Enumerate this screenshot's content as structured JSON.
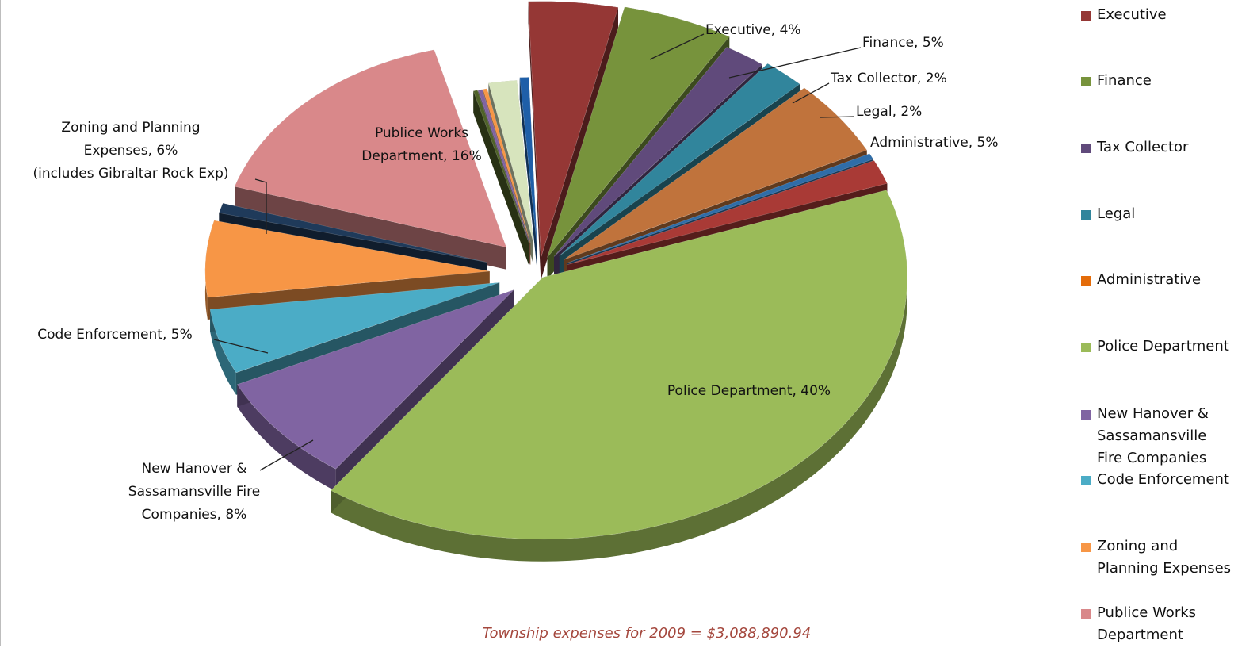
{
  "chart_data": {
    "type": "pie",
    "note": "Township expenses for 2009 = $3,088,890.94",
    "slices": [
      {
        "name": "Executive",
        "value": 4,
        "label": "Executive, 4%",
        "color": "#953735"
      },
      {
        "name": "Finance",
        "value": 5,
        "label": "Finance, 5%",
        "color": "#77933c"
      },
      {
        "name": "Tax Collector",
        "value": 2,
        "label": "Tax Collector, 2%",
        "color": "#604a7b"
      },
      {
        "name": "Legal",
        "value": 2,
        "label": "Legal, 2%",
        "color": "#31859c"
      },
      {
        "name": "Administrative",
        "value": 5,
        "label": "Administrative, 5%",
        "color": "#c0733c"
      },
      {
        "name": "",
        "value": 0.4,
        "label": "",
        "color": "#2f6da8"
      },
      {
        "name": "",
        "value": 1.6,
        "label": "",
        "color": "#a93a36"
      },
      {
        "name": "Police Department",
        "value": 40,
        "label": "Police Department, 40%",
        "color": "#9bbb59"
      },
      {
        "name": "New Hanover & Sassamansville Fire Companies",
        "value": 8,
        "label": "New Hanover & Sassamansville Fire Companies, 8%",
        "color": "#8064a2"
      },
      {
        "name": "Code Enforcement",
        "value": 5,
        "label": "Code Enforcement, 5%",
        "color": "#4bacc6"
      },
      {
        "name": "Zoning and Planning Expenses",
        "value": 6,
        "label": "Zoning and Planning Expenses, 6% (includes Gibraltar Rock Exp)",
        "color": "#f79646"
      },
      {
        "name": "",
        "value": 0.8,
        "label": "",
        "color": "#1f3a5a"
      },
      {
        "name": "Publice Works Department",
        "value": 16,
        "label": "Publice Works Department, 16%",
        "color": "#d9888a"
      },
      {
        "name": "",
        "value": 0.3,
        "label": "",
        "color": "#4f6228"
      },
      {
        "name": "",
        "value": 0.3,
        "label": "",
        "color": "#8064a2"
      },
      {
        "name": "",
        "value": 0.3,
        "label": "",
        "color": "#f79646"
      },
      {
        "name": "",
        "value": 2.0,
        "label": "",
        "color": "#d7e4bd"
      },
      {
        "name": "",
        "value": 0.6,
        "label": "",
        "color": "#1f5fa8"
      }
    ],
    "legend": {
      "placement": "right",
      "entries": [
        {
          "text": "Executive",
          "color": "#953735"
        },
        {
          "text": "Finance",
          "color": "#77933c"
        },
        {
          "text": "Tax Collector",
          "color": "#604a7b"
        },
        {
          "text": "Legal",
          "color": "#31859c"
        },
        {
          "text": "Administrative",
          "color": "#e46c0a"
        },
        {
          "text": "Police Department",
          "color": "#9bbb59"
        },
        {
          "text": "New Hanover & Sassamansville Fire Companies",
          "color": "#8064a2"
        },
        {
          "text": "Code Enforcement",
          "color": "#4bacc6"
        },
        {
          "text": "Zoning and Planning Expenses",
          "color": "#f79646"
        },
        {
          "text": "Publice Works Department",
          "color": "#d9888a"
        }
      ]
    }
  }
}
